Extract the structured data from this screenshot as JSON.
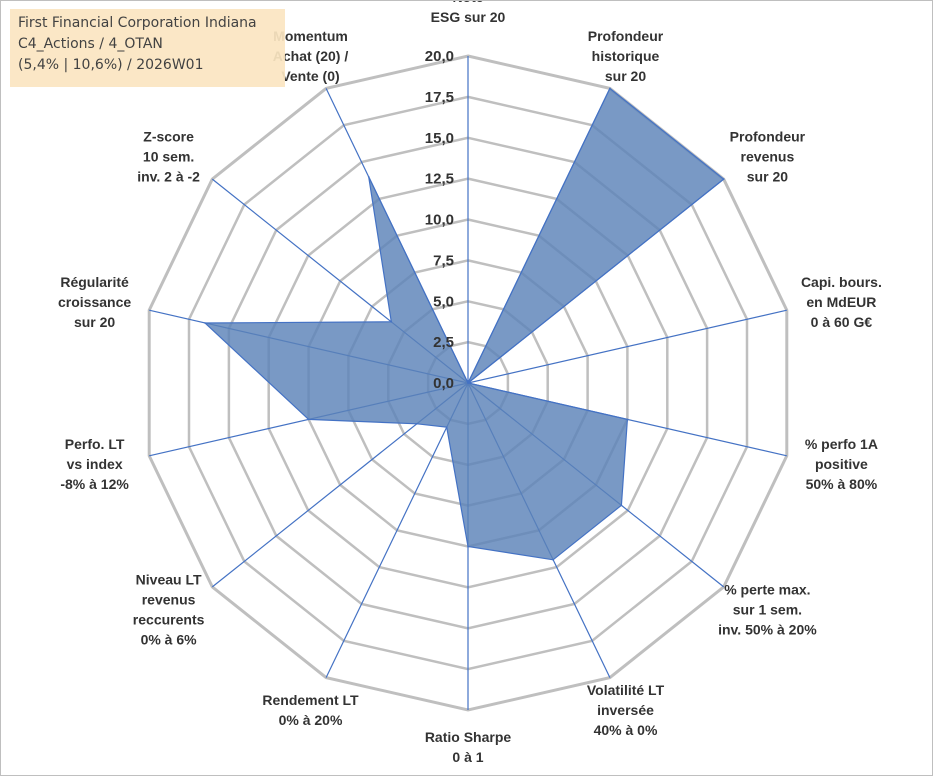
{
  "info_box": {
    "company": "First Financial Corporation Indiana",
    "portfolio": "C4_Actions / 4_OTAN",
    "params": "(5,4% | 10,6%) / 2026W01"
  },
  "chart_data": {
    "type": "radar",
    "title": "",
    "range": [
      0,
      20
    ],
    "ticks": [
      "0,0",
      "2,5",
      "5,0",
      "7,5",
      "10,0",
      "12,5",
      "15,0",
      "17,5",
      "20,0"
    ],
    "axes": [
      {
        "label": [
          "Note",
          "ESG sur 20"
        ]
      },
      {
        "label": [
          "Profondeur",
          "historique",
          "sur 20"
        ]
      },
      {
        "label": [
          "Profondeur",
          "revenus",
          "sur 20"
        ]
      },
      {
        "label": [
          "Capi. bours.",
          "en MdEUR",
          "0 à 60 G€"
        ]
      },
      {
        "label": [
          "% perfo 1A",
          "positive",
          "50% à 80%"
        ]
      },
      {
        "label": [
          "% perte max.",
          "sur 1 sem.",
          "inv. 50% à 20%"
        ]
      },
      {
        "label": [
          "Volatilité LT",
          "inversée",
          "40% à 0%"
        ]
      },
      {
        "label": [
          "Ratio Sharpe",
          "0 à 1"
        ]
      },
      {
        "label": [
          "Rendement LT",
          "0% à 20%"
        ]
      },
      {
        "label": [
          "Niveau LT",
          "revenus",
          "reccurents",
          "0% à 6%"
        ]
      },
      {
        "label": [
          "Perfo. LT",
          "vs index",
          "-8% à 12%"
        ]
      },
      {
        "label": [
          "Régularité",
          "croissance",
          "sur 20"
        ]
      },
      {
        "label": [
          "Z-score",
          "10 sem.",
          "inv. 2 à -2"
        ]
      },
      {
        "label": [
          "Momentum",
          "Achat (20) /",
          "Vente (0)"
        ]
      }
    ],
    "series": [
      {
        "name": "First Financial Corporation Indiana",
        "values": [
          0,
          20,
          20,
          0,
          10,
          12,
          12,
          10,
          3,
          4,
          10,
          16.5,
          6,
          14
        ]
      }
    ],
    "colors": {
      "fill": "#5b83b8",
      "stroke": "#4472c4",
      "grid": "#bfbfbf",
      "axis": "#4472c4",
      "text": "#333333"
    }
  }
}
